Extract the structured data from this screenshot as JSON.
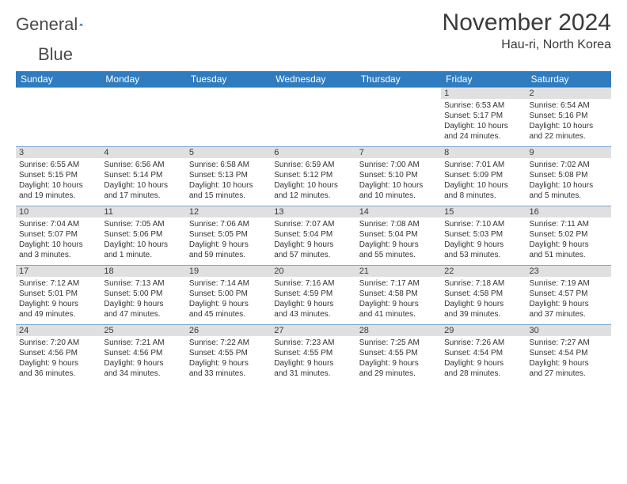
{
  "brand": {
    "word1": "General",
    "word2": "Blue"
  },
  "title": "November 2024",
  "location": "Hau-ri, North Korea",
  "colors": {
    "header_bg": "#2f7cc0",
    "header_text": "#ffffff",
    "daynum_bg": "#e0e0e0",
    "border": "#7aa7cf",
    "text": "#333333",
    "title_text": "#3a3a3a"
  },
  "days_of_week": [
    "Sunday",
    "Monday",
    "Tuesday",
    "Wednesday",
    "Thursday",
    "Friday",
    "Saturday"
  ],
  "weeks": [
    [
      {
        "n": "",
        "lines": [
          "",
          "",
          "",
          ""
        ]
      },
      {
        "n": "",
        "lines": [
          "",
          "",
          "",
          ""
        ]
      },
      {
        "n": "",
        "lines": [
          "",
          "",
          "",
          ""
        ]
      },
      {
        "n": "",
        "lines": [
          "",
          "",
          "",
          ""
        ]
      },
      {
        "n": "",
        "lines": [
          "",
          "",
          "",
          ""
        ]
      },
      {
        "n": "1",
        "lines": [
          "Sunrise: 6:53 AM",
          "Sunset: 5:17 PM",
          "Daylight: 10 hours",
          "and 24 minutes."
        ]
      },
      {
        "n": "2",
        "lines": [
          "Sunrise: 6:54 AM",
          "Sunset: 5:16 PM",
          "Daylight: 10 hours",
          "and 22 minutes."
        ]
      }
    ],
    [
      {
        "n": "3",
        "lines": [
          "Sunrise: 6:55 AM",
          "Sunset: 5:15 PM",
          "Daylight: 10 hours",
          "and 19 minutes."
        ]
      },
      {
        "n": "4",
        "lines": [
          "Sunrise: 6:56 AM",
          "Sunset: 5:14 PM",
          "Daylight: 10 hours",
          "and 17 minutes."
        ]
      },
      {
        "n": "5",
        "lines": [
          "Sunrise: 6:58 AM",
          "Sunset: 5:13 PM",
          "Daylight: 10 hours",
          "and 15 minutes."
        ]
      },
      {
        "n": "6",
        "lines": [
          "Sunrise: 6:59 AM",
          "Sunset: 5:12 PM",
          "Daylight: 10 hours",
          "and 12 minutes."
        ]
      },
      {
        "n": "7",
        "lines": [
          "Sunrise: 7:00 AM",
          "Sunset: 5:10 PM",
          "Daylight: 10 hours",
          "and 10 minutes."
        ]
      },
      {
        "n": "8",
        "lines": [
          "Sunrise: 7:01 AM",
          "Sunset: 5:09 PM",
          "Daylight: 10 hours",
          "and 8 minutes."
        ]
      },
      {
        "n": "9",
        "lines": [
          "Sunrise: 7:02 AM",
          "Sunset: 5:08 PM",
          "Daylight: 10 hours",
          "and 5 minutes."
        ]
      }
    ],
    [
      {
        "n": "10",
        "lines": [
          "Sunrise: 7:04 AM",
          "Sunset: 5:07 PM",
          "Daylight: 10 hours",
          "and 3 minutes."
        ]
      },
      {
        "n": "11",
        "lines": [
          "Sunrise: 7:05 AM",
          "Sunset: 5:06 PM",
          "Daylight: 10 hours",
          "and 1 minute."
        ]
      },
      {
        "n": "12",
        "lines": [
          "Sunrise: 7:06 AM",
          "Sunset: 5:05 PM",
          "Daylight: 9 hours",
          "and 59 minutes."
        ]
      },
      {
        "n": "13",
        "lines": [
          "Sunrise: 7:07 AM",
          "Sunset: 5:04 PM",
          "Daylight: 9 hours",
          "and 57 minutes."
        ]
      },
      {
        "n": "14",
        "lines": [
          "Sunrise: 7:08 AM",
          "Sunset: 5:04 PM",
          "Daylight: 9 hours",
          "and 55 minutes."
        ]
      },
      {
        "n": "15",
        "lines": [
          "Sunrise: 7:10 AM",
          "Sunset: 5:03 PM",
          "Daylight: 9 hours",
          "and 53 minutes."
        ]
      },
      {
        "n": "16",
        "lines": [
          "Sunrise: 7:11 AM",
          "Sunset: 5:02 PM",
          "Daylight: 9 hours",
          "and 51 minutes."
        ]
      }
    ],
    [
      {
        "n": "17",
        "lines": [
          "Sunrise: 7:12 AM",
          "Sunset: 5:01 PM",
          "Daylight: 9 hours",
          "and 49 minutes."
        ]
      },
      {
        "n": "18",
        "lines": [
          "Sunrise: 7:13 AM",
          "Sunset: 5:00 PM",
          "Daylight: 9 hours",
          "and 47 minutes."
        ]
      },
      {
        "n": "19",
        "lines": [
          "Sunrise: 7:14 AM",
          "Sunset: 5:00 PM",
          "Daylight: 9 hours",
          "and 45 minutes."
        ]
      },
      {
        "n": "20",
        "lines": [
          "Sunrise: 7:16 AM",
          "Sunset: 4:59 PM",
          "Daylight: 9 hours",
          "and 43 minutes."
        ]
      },
      {
        "n": "21",
        "lines": [
          "Sunrise: 7:17 AM",
          "Sunset: 4:58 PM",
          "Daylight: 9 hours",
          "and 41 minutes."
        ]
      },
      {
        "n": "22",
        "lines": [
          "Sunrise: 7:18 AM",
          "Sunset: 4:58 PM",
          "Daylight: 9 hours",
          "and 39 minutes."
        ]
      },
      {
        "n": "23",
        "lines": [
          "Sunrise: 7:19 AM",
          "Sunset: 4:57 PM",
          "Daylight: 9 hours",
          "and 37 minutes."
        ]
      }
    ],
    [
      {
        "n": "24",
        "lines": [
          "Sunrise: 7:20 AM",
          "Sunset: 4:56 PM",
          "Daylight: 9 hours",
          "and 36 minutes."
        ]
      },
      {
        "n": "25",
        "lines": [
          "Sunrise: 7:21 AM",
          "Sunset: 4:56 PM",
          "Daylight: 9 hours",
          "and 34 minutes."
        ]
      },
      {
        "n": "26",
        "lines": [
          "Sunrise: 7:22 AM",
          "Sunset: 4:55 PM",
          "Daylight: 9 hours",
          "and 33 minutes."
        ]
      },
      {
        "n": "27",
        "lines": [
          "Sunrise: 7:23 AM",
          "Sunset: 4:55 PM",
          "Daylight: 9 hours",
          "and 31 minutes."
        ]
      },
      {
        "n": "28",
        "lines": [
          "Sunrise: 7:25 AM",
          "Sunset: 4:55 PM",
          "Daylight: 9 hours",
          "and 29 minutes."
        ]
      },
      {
        "n": "29",
        "lines": [
          "Sunrise: 7:26 AM",
          "Sunset: 4:54 PM",
          "Daylight: 9 hours",
          "and 28 minutes."
        ]
      },
      {
        "n": "30",
        "lines": [
          "Sunrise: 7:27 AM",
          "Sunset: 4:54 PM",
          "Daylight: 9 hours",
          "and 27 minutes."
        ]
      }
    ]
  ]
}
